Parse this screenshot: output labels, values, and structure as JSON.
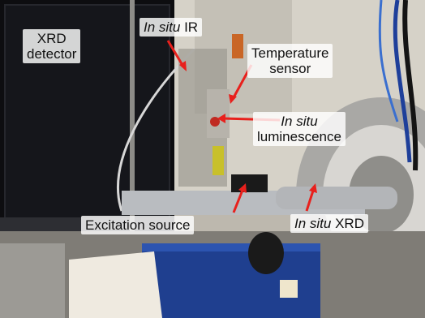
{
  "labels": {
    "xrd_detector": {
      "line1": "XRD",
      "line2": "detector"
    },
    "in_situ_ir": {
      "italic": "In situ",
      "rest": " IR"
    },
    "temperature_sensor": {
      "line1": "Temperature",
      "line2": "sensor"
    },
    "in_situ_luminescence": {
      "italic": "In situ",
      "line2": "luminescence"
    },
    "excitation_source": {
      "text": "Excitation source"
    },
    "in_situ_xrd": {
      "italic": "In situ",
      "rest": " XRD"
    }
  },
  "colors": {
    "arrow": "#e8201c",
    "label_bg": "#ffffff",
    "detector_panel": "#0d0d10",
    "background_wall": "#d9d5cc",
    "blue_box": "#1f3f8f"
  }
}
